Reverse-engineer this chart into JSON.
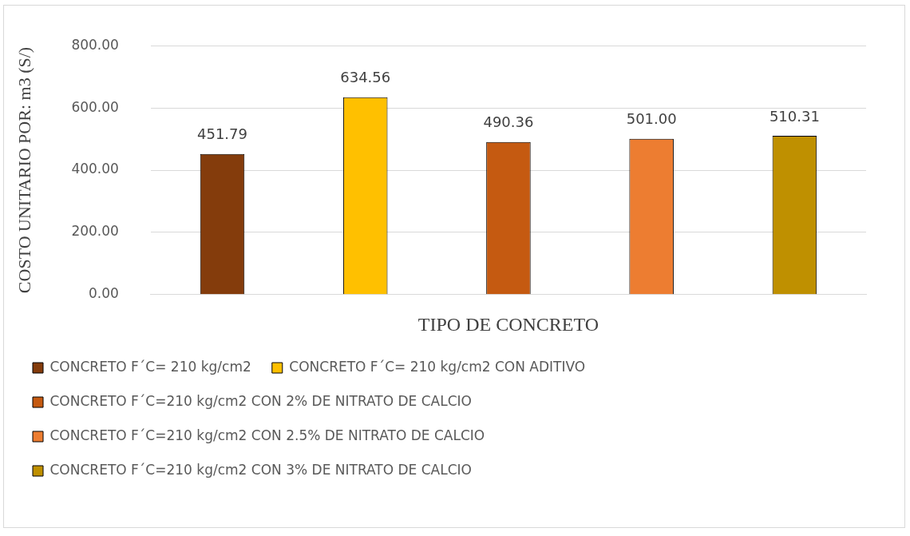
{
  "chart_data": {
    "type": "bar",
    "xlabel": "TIPO DE CONCRETO",
    "ylabel": "COSTO UNITARIO POR: m3 (S/)",
    "categories": [
      null,
      null,
      null,
      null,
      null
    ],
    "stacked": true,
    "series": [
      {
        "name": "CONCRETO F´C= 210 kg/cm2",
        "color": "#843c0c",
        "values": [
          451.79,
          null,
          null,
          null,
          null
        ],
        "value_labels": [
          "451.79",
          null,
          null,
          null,
          null
        ]
      },
      {
        "name": "CONCRETO F´C= 210 kg/cm2 CON ADITIVO",
        "color": "#ffc000",
        "values": [
          null,
          634.56,
          null,
          null,
          null
        ],
        "value_labels": [
          null,
          "634.56",
          null,
          null,
          null
        ]
      },
      {
        "name": "CONCRETO F´C=210 kg/cm2 CON 2% DE NITRATO DE CALCIO",
        "color": "#c55a11",
        "values": [
          null,
          null,
          490.36,
          null,
          null
        ],
        "value_labels": [
          null,
          null,
          "490.36",
          null,
          null
        ]
      },
      {
        "name": "CONCRETO F´C=210 kg/cm2 CON 2.5% DE NITRATO DE CALCIO",
        "color": "#ed7d31",
        "values": [
          null,
          null,
          null,
          501.0,
          null
        ],
        "value_labels": [
          null,
          null,
          null,
          "501.00",
          null
        ]
      },
      {
        "name": "CONCRETO F´C=210 kg/cm2 CON 3% DE NITRATO DE CALCIO",
        "color": "#bf9000",
        "values": [
          null,
          null,
          null,
          null,
          510.31
        ],
        "value_labels": [
          null,
          null,
          null,
          null,
          "510.31"
        ]
      }
    ],
    "ylim": [
      0,
      800
    ],
    "yticks": [
      {
        "value": 0,
        "label": "0.00"
      },
      {
        "value": 200,
        "label": "200.00"
      },
      {
        "value": 400,
        "label": "400.00"
      },
      {
        "value": 600,
        "label": "600.00"
      },
      {
        "value": 800,
        "label": "800.00"
      }
    ],
    "grid": "y",
    "legend": "bottom"
  }
}
